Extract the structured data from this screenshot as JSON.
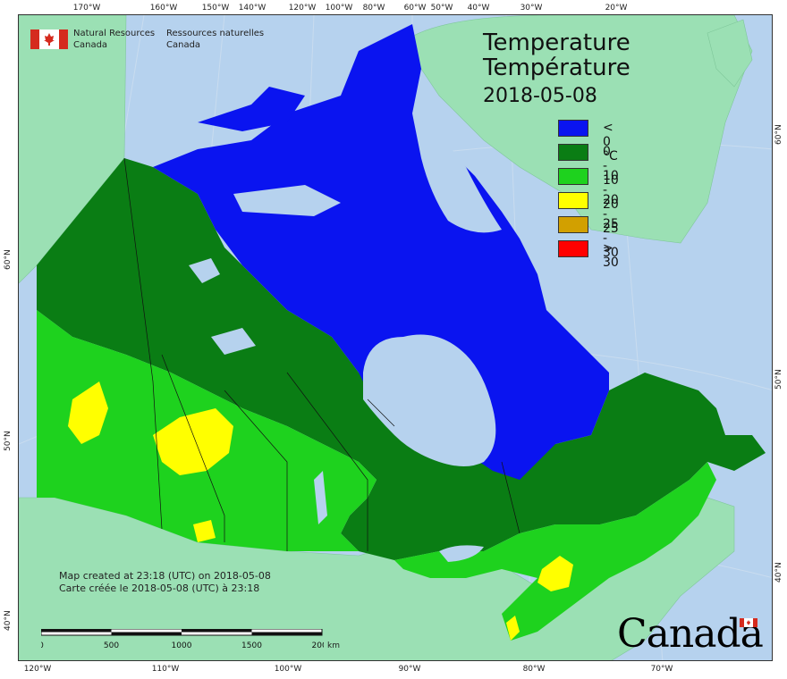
{
  "title": {
    "en": "Temperature",
    "fr": "Température",
    "date": "2018-05-08"
  },
  "legend": [
    {
      "label": "< 0 °C",
      "color": "#0a14f0"
    },
    {
      "label": "0 - 10",
      "color": "#0a7d14"
    },
    {
      "label": "10 - 20",
      "color": "#1ed21e"
    },
    {
      "label": "20 - 25",
      "color": "#ffff00"
    },
    {
      "label": "25 - 30",
      "color": "#d2a000"
    },
    {
      "label": "> 30",
      "color": "#ff0000"
    }
  ],
  "agency": {
    "en": [
      "Natural Resources",
      "Canada"
    ],
    "fr": [
      "Ressources naturelles",
      "Canada"
    ]
  },
  "credit": {
    "en": "Map created at 23:18 (UTC) on 2018-05-08",
    "fr": "Carte créée le 2018-05-08 (UTC) à 23:18"
  },
  "scale": {
    "labels": [
      "0",
      "500",
      "1000",
      "1500",
      "2000"
    ],
    "unit": "km"
  },
  "wordmark": "Canada",
  "graticule": {
    "top": [
      "170°W",
      "160°W",
      "150°W",
      "140°W",
      "120°W",
      "100°W",
      "80°W",
      "60°W",
      "50°W",
      "40°W",
      "30°W",
      "20°W"
    ],
    "bottom": [
      "120°W",
      "110°W",
      "100°W",
      "90°W",
      "80°W",
      "70°W"
    ],
    "left": [
      "60°N",
      "50°N",
      "40°N"
    ],
    "right": [
      "60°N",
      "50°N",
      "40°N"
    ]
  },
  "colors": {
    "water": "#b6d2ee",
    "land_outside": "#9be0b4"
  }
}
